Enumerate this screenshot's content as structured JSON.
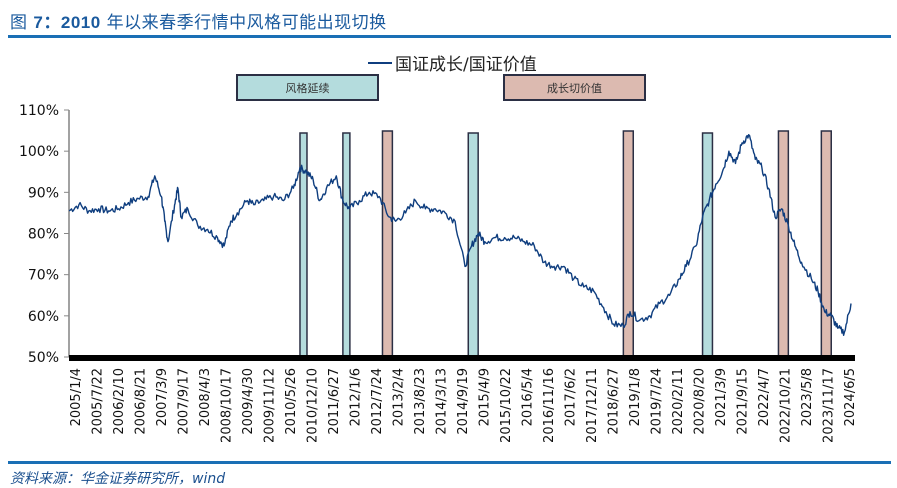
{
  "header": {
    "title_prefix": "图",
    "title_number": "7：2010",
    "title_rest": "年以来春季行情中风格可能出现切换"
  },
  "legend": {
    "series_label": "国证成长/国证价值",
    "box_continue": "风格延续",
    "box_switch": "成长切价值"
  },
  "footer": {
    "source": "资料来源：华金证券研究所，wind"
  },
  "colors": {
    "line": "#0f3e7f",
    "continue_fill": "#b4dcdd",
    "switch_fill": "#dcbab0",
    "box_border": "#2b2f44",
    "rule": "#1a6fb5",
    "title": "#1a5a9e"
  },
  "chart_data": {
    "type": "line",
    "title": "图7：2010年以来春季行情中风格可能出现切换",
    "xlabel": "",
    "ylabel": "",
    "ylim": [
      0.5,
      1.1
    ],
    "yticks": [
      "50%",
      "60%",
      "70%",
      "80%",
      "90%",
      "100%",
      "110%"
    ],
    "xticks": [
      "2005/1/4",
      "2005/7/22",
      "2006/2/10",
      "2006/8/21",
      "2007/3/9",
      "2007/9/17",
      "2008/4/3",
      "2008/10/17",
      "2009/4/30",
      "2009/11/12",
      "2010/5/26",
      "2010/12/10",
      "2011/6/27",
      "2012/1/6",
      "2012/7/24",
      "2013/2/4",
      "2013/8/23",
      "2014/3/13",
      "2014/9/19",
      "2015/4/9",
      "2015/10/22",
      "2016/5/4",
      "2016/11/16",
      "2017/6/2",
      "2017/12/11",
      "2018/6/27",
      "2019/1/8",
      "2019/7/24",
      "2020/2/11",
      "2020/8/20",
      "2021/3/9",
      "2021/9/15",
      "2022/4/7",
      "2022/10/21",
      "2023/5/8",
      "2023/11/17",
      "2024/6/5"
    ],
    "series": [
      {
        "name": "国证成长/国证价值",
        "x": [
          "2005/1",
          "2005/4",
          "2005/7",
          "2005/10",
          "2006/1",
          "2006/4",
          "2006/7",
          "2006/10",
          "2007/1",
          "2007/3",
          "2007/5",
          "2007/6",
          "2007/7",
          "2007/9",
          "2007/10",
          "2007/11",
          "2008/1",
          "2008/4",
          "2008/7",
          "2008/10",
          "2008/12",
          "2009/2",
          "2009/4",
          "2009/7",
          "2009/9",
          "2009/12",
          "2010/3",
          "2010/6",
          "2010/9",
          "2010/11",
          "2011/1",
          "2011/3",
          "2011/5",
          "2011/7",
          "2011/10",
          "2011/12",
          "2012/2",
          "2012/5",
          "2012/8",
          "2012/11",
          "2013/2",
          "2013/4",
          "2013/7",
          "2013/10",
          "2014/1",
          "2014/4",
          "2014/7",
          "2014/10",
          "2015/1",
          "2015/3",
          "2015/5",
          "2015/7",
          "2015/10",
          "2016/1",
          "2016/4",
          "2016/7",
          "2016/10",
          "2017/1",
          "2017/4",
          "2017/7",
          "2017/10",
          "2018/1",
          "2018/4",
          "2018/7",
          "2018/10",
          "2019/1",
          "2019/3",
          "2019/6",
          "2019/9",
          "2019/12",
          "2020/3",
          "2020/6",
          "2020/8",
          "2020/11",
          "2021/1",
          "2021/3",
          "2021/5",
          "2021/7",
          "2021/9",
          "2021/11",
          "2022/1",
          "2022/3",
          "2022/5",
          "2022/7",
          "2022/9",
          "2022/11",
          "2023/1",
          "2023/3",
          "2023/5",
          "2023/7",
          "2023/10",
          "2023/12",
          "2024/2",
          "2024/4",
          "2024/6",
          "2024/8",
          "2024/10"
        ],
        "values": [
          0.855,
          0.87,
          0.855,
          0.86,
          0.855,
          0.86,
          0.875,
          0.885,
          0.89,
          0.94,
          0.89,
          0.83,
          0.78,
          0.87,
          0.91,
          0.84,
          0.86,
          0.82,
          0.81,
          0.79,
          0.77,
          0.83,
          0.85,
          0.88,
          0.87,
          0.88,
          0.89,
          0.88,
          0.91,
          0.96,
          0.95,
          0.93,
          0.88,
          0.91,
          0.94,
          0.88,
          0.86,
          0.88,
          0.9,
          0.89,
          0.84,
          0.83,
          0.85,
          0.88,
          0.86,
          0.86,
          0.85,
          0.83,
          0.72,
          0.77,
          0.8,
          0.78,
          0.79,
          0.79,
          0.79,
          0.78,
          0.77,
          0.73,
          0.72,
          0.72,
          0.69,
          0.67,
          0.66,
          0.62,
          0.58,
          0.575,
          0.61,
          0.59,
          0.6,
          0.63,
          0.65,
          0.69,
          0.72,
          0.77,
          0.84,
          0.88,
          0.92,
          0.95,
          1.0,
          0.97,
          1.02,
          1.04,
          0.98,
          0.96,
          0.91,
          0.84,
          0.86,
          0.82,
          0.77,
          0.73,
          0.69,
          0.66,
          0.61,
          0.6,
          0.57,
          0.56,
          0.63
        ]
      }
    ],
    "highlight_periods": [
      {
        "type": "风格延续",
        "start": "2010/11",
        "end": "2011/1"
      },
      {
        "type": "风格延续",
        "start": "2011/12",
        "end": "2012/2"
      },
      {
        "type": "成长切价值",
        "start": "2012/12",
        "end": "2013/3"
      },
      {
        "type": "风格延续",
        "start": "2015/2",
        "end": "2015/5"
      },
      {
        "type": "成长切价值",
        "start": "2019/1",
        "end": "2019/4"
      },
      {
        "type": "风格延续",
        "start": "2021/1",
        "end": "2021/4"
      },
      {
        "type": "成长切价值",
        "start": "2022/12",
        "end": "2023/3"
      },
      {
        "type": "成长切价值",
        "start": "2024/1",
        "end": "2024/4"
      }
    ],
    "legend_position": "top-center",
    "grid": false
  }
}
